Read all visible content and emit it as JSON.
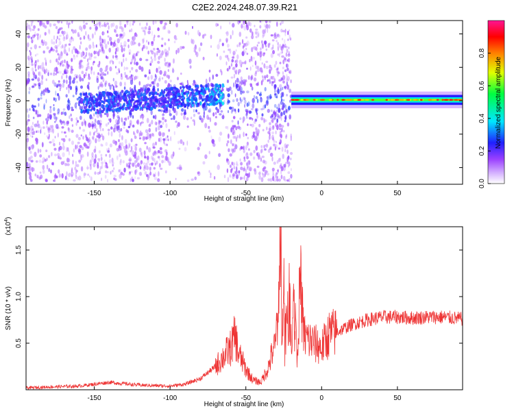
{
  "title": "C2E2.2024.248.07.39.R21",
  "chart_data": [
    {
      "type": "heatmap",
      "panel": "spectrogram",
      "xlabel": "Height of straight line (km)",
      "ylabel": "Frequency (Hz)",
      "xlim": [
        -195,
        93
      ],
      "ylim": [
        -50,
        48
      ],
      "x_ticks": [
        -150,
        -100,
        -50,
        0,
        50
      ],
      "y_ticks": [
        -40,
        -20,
        0,
        20,
        40
      ],
      "x_tick_labels": [
        "-150",
        "-100",
        "-50",
        "0",
        "50"
      ],
      "y_tick_labels": [
        "-40",
        "-20",
        "0",
        "20",
        "40"
      ],
      "colorbar": {
        "label": "Normalized spectral amplitude",
        "range": [
          0,
          1
        ],
        "ticks": [
          0,
          0.2,
          0.4,
          0.6,
          0.8
        ],
        "tick_labels": [
          "0.0",
          "0.2",
          "0.4",
          "0.6",
          "0.8"
        ],
        "colors": [
          "#ffffff",
          "#b889ff",
          "#7a00ff",
          "#2020ff",
          "#00ffff",
          "#00ff00",
          "#ffff00",
          "#ff8000",
          "#ff0000",
          "#ff0080"
        ]
      },
      "regions": [
        {
          "x_range": [
            -195,
            -20
          ],
          "description": "broadband diffuse",
          "freq_spread": 48,
          "max_amp": 0.45
        },
        {
          "x_range": [
            -95,
            -65
          ],
          "description": "band near 0 Hz rising",
          "center_start": -5,
          "center_end": 5,
          "max_amp": 0.45
        },
        {
          "x_range": [
            -20,
            93
          ],
          "description": "narrow band at 0 Hz",
          "center": 0.5,
          "width": 3,
          "max_amp": 0.95
        }
      ]
    },
    {
      "type": "line",
      "panel": "snr",
      "xlabel": "Height of straight line (km)",
      "ylabel": "SNR (10 * v/v)",
      "y_scale_label": "(x10",
      "y_scale_exp": "4",
      "xlim": [
        -195,
        93
      ],
      "ylim": [
        0,
        1.75
      ],
      "x_ticks": [
        -150,
        -100,
        -50,
        0,
        50
      ],
      "y_ticks": [
        0.5,
        1.0,
        1.5
      ],
      "x_tick_labels": [
        "-150",
        "-100",
        "-50",
        "0",
        "50"
      ],
      "y_tick_labels": [
        "0.5",
        "1.0",
        "1.5"
      ],
      "series": [
        {
          "color": "#ee3333",
          "x": [
            -195,
            -180,
            -160,
            -140,
            -120,
            -100,
            -90,
            -80,
            -70,
            -65,
            -60,
            -57,
            -55,
            -50,
            -45,
            -40,
            -35,
            -30,
            -28,
            -27,
            -26,
            -25,
            -24,
            -22,
            -20,
            -18,
            -16,
            -14,
            -12,
            -10,
            -5,
            0,
            5,
            10,
            20,
            30,
            40,
            50,
            60,
            70,
            80,
            93
          ],
          "y": [
            0.02,
            0.03,
            0.04,
            0.08,
            0.05,
            0.04,
            0.06,
            0.12,
            0.25,
            0.35,
            0.45,
            0.58,
            0.4,
            0.22,
            0.1,
            0.08,
            0.25,
            0.55,
            1.2,
            1.75,
            0.8,
            1.2,
            0.6,
            1.05,
            0.7,
            0.9,
            0.55,
            1.15,
            0.6,
            0.55,
            0.5,
            0.45,
            0.6,
            0.62,
            0.7,
            0.75,
            0.78,
            0.78,
            0.77,
            0.78,
            0.78,
            0.76
          ]
        }
      ]
    }
  ]
}
